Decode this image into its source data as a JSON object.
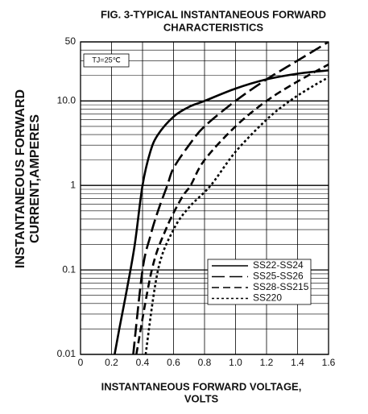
{
  "chart_data": {
    "type": "line",
    "title": [
      "FIG. 3-TYPICAL INSTANTANEOUS FORWARD",
      "CHARACTERISTICS"
    ],
    "x_label": [
      "INSTANTANEOUS FORWARD VOLTAGE,",
      "VOLTS"
    ],
    "y_label": [
      "INSTANTANEOUS FORWARD",
      "CURRENT,AMPERES"
    ],
    "annotation": "TJ=25℃",
    "xlim": [
      0,
      1.6
    ],
    "ylim": [
      0.01,
      50
    ],
    "y_scale": "log",
    "grid": true,
    "xticks": [
      0,
      0.2,
      0.4,
      0.6,
      0.8,
      {
        "value": 1,
        "label": "1.0"
      },
      1.2,
      1.4,
      1.6
    ],
    "yticks": [
      0.01,
      0.1,
      1,
      {
        "value": 10,
        "label": "10.0"
      },
      50
    ],
    "series": [
      {
        "name": "SS22-SS24",
        "color": "#000000",
        "style": "solid",
        "x": [
          0.22,
          0.25,
          0.3,
          0.35,
          0.4,
          0.45,
          0.5,
          0.6,
          0.7,
          0.8,
          1.0,
          1.2,
          1.4,
          1.6
        ],
        "values": [
          0.01,
          0.02,
          0.06,
          0.2,
          1,
          2.5,
          4,
          6.5,
          8.5,
          10,
          14,
          18,
          21,
          23
        ]
      },
      {
        "name": "SS25-SS26",
        "color": "#000000",
        "style": "long-dash",
        "x": [
          0.34,
          0.4,
          0.45,
          0.5,
          0.56,
          0.6,
          0.7,
          0.8,
          1.0,
          1.2,
          1.4,
          1.6
        ],
        "values": [
          0.01,
          0.1,
          0.25,
          0.5,
          1,
          1.6,
          3,
          5,
          10,
          18,
          30,
          50
        ]
      },
      {
        "name": "SS28-SS215",
        "color": "#000000",
        "style": "dash",
        "x": [
          0.36,
          0.46,
          0.55,
          0.65,
          0.71,
          0.8,
          1.0,
          1.2,
          1.4,
          1.6
        ],
        "values": [
          0.01,
          0.1,
          0.3,
          0.7,
          1,
          2,
          5,
          10,
          17,
          27
        ]
      },
      {
        "name": "SS220",
        "color": "#000000",
        "style": "dot",
        "x": [
          0.42,
          0.5,
          0.6,
          0.7,
          0.84,
          1.0,
          1.2,
          1.35,
          1.5,
          1.6
        ],
        "values": [
          0.01,
          0.1,
          0.3,
          0.55,
          1,
          2.5,
          6,
          10,
          15,
          19
        ]
      }
    ]
  }
}
